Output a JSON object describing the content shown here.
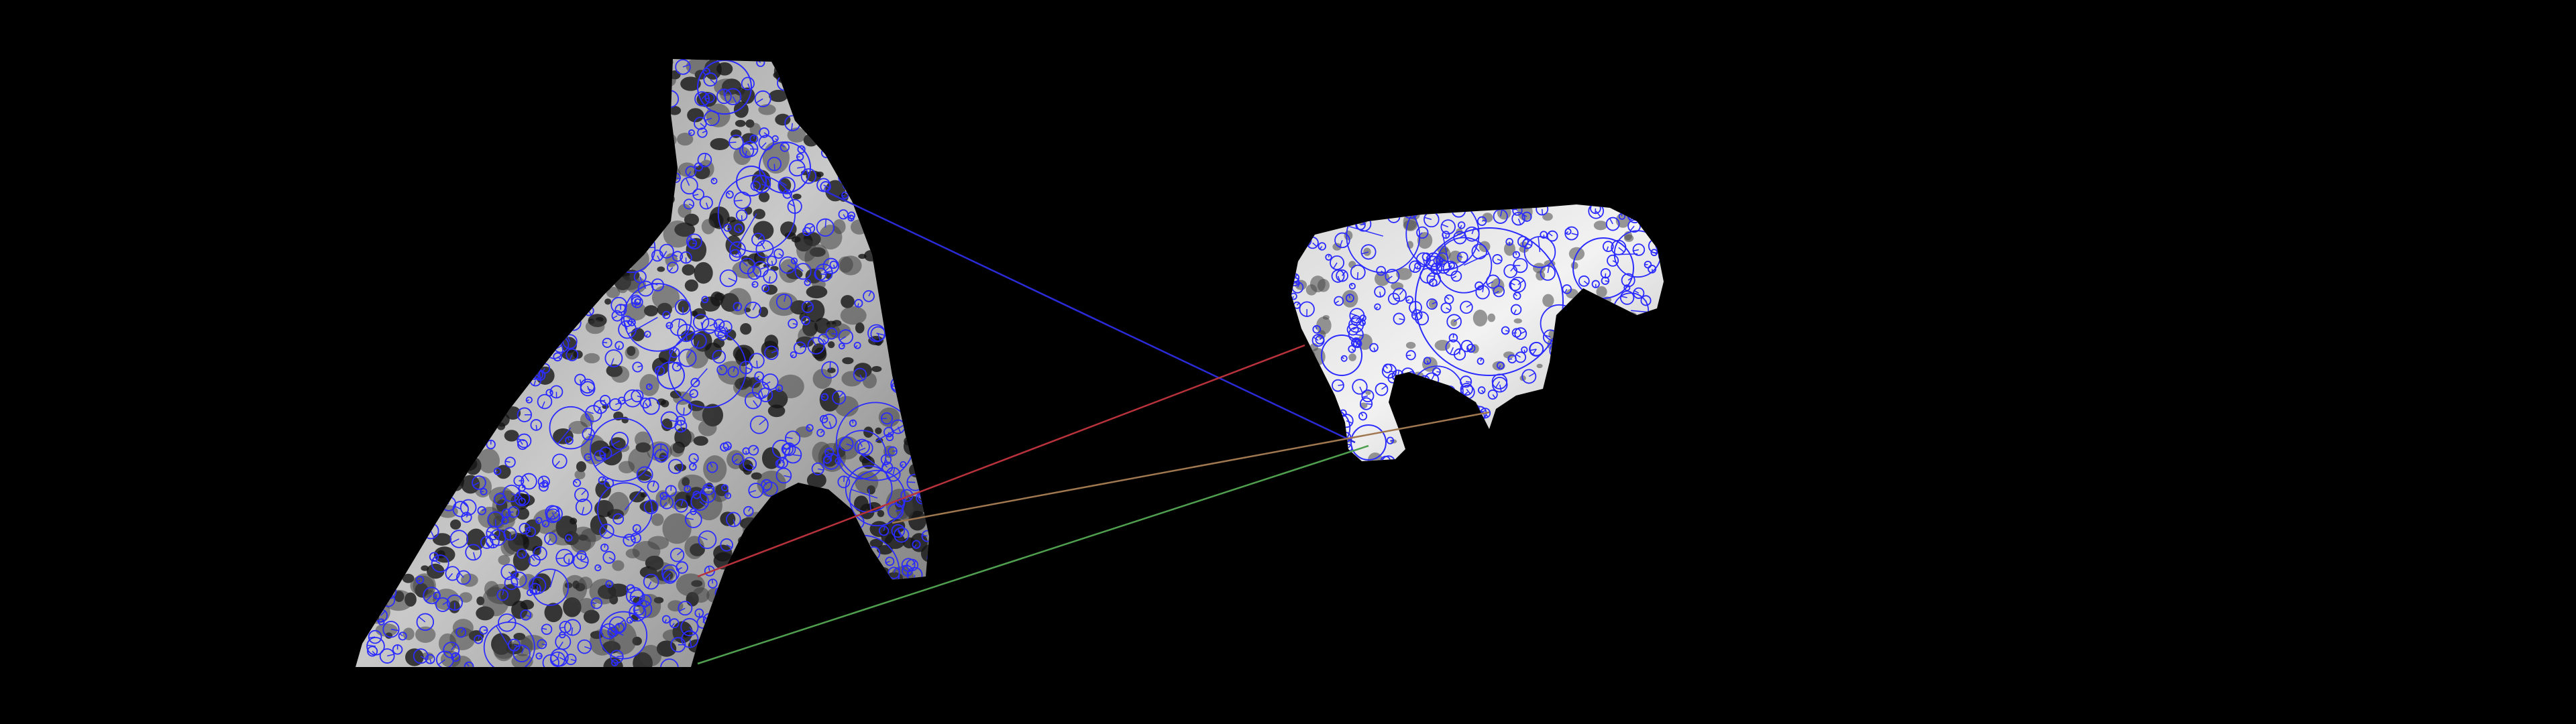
{
  "scene": {
    "background_color": "#000000",
    "description_hidden": true,
    "left_image": {
      "name": "left-leopard-fur-patch"
    },
    "right_image": {
      "name": "right-leopard-figurine"
    },
    "keypoint_color": "#2b2bff",
    "match_lines": [
      {
        "name": "match-line-blue",
        "color": "#2a2ad6"
      },
      {
        "name": "match-line-red",
        "color": "#b8323c"
      },
      {
        "name": "match-line-brown",
        "color": "#a07850"
      },
      {
        "name": "match-line-green",
        "color": "#4f9f4f"
      }
    ]
  }
}
